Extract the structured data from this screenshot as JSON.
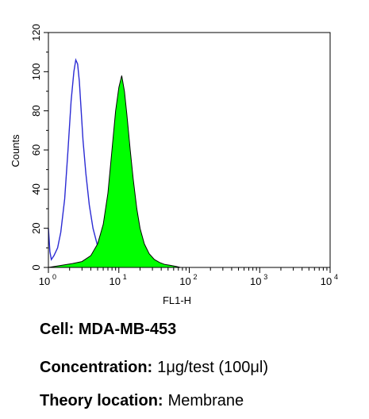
{
  "chart_data": {
    "type": "area",
    "title": "",
    "xlabel": "FL1-H",
    "ylabel": "Counts",
    "x_scale": "log",
    "xlim": [
      1,
      10000
    ],
    "ylim": [
      0,
      120
    ],
    "x_ticks": [
      {
        "value": 1,
        "base": "10",
        "exp": "0"
      },
      {
        "value": 10,
        "base": "10",
        "exp": "1"
      },
      {
        "value": 100,
        "base": "10",
        "exp": "2"
      },
      {
        "value": 1000,
        "base": "10",
        "exp": "3"
      },
      {
        "value": 10000,
        "base": "10",
        "exp": "4"
      }
    ],
    "y_ticks": [
      0,
      20,
      40,
      60,
      80,
      100,
      120
    ],
    "grid": false,
    "series": [
      {
        "style": "outline",
        "color": "#2b2bd4",
        "x": [
          1.0,
          1.05,
          1.1,
          1.2,
          1.35,
          1.5,
          1.7,
          1.9,
          2.1,
          2.3,
          2.45,
          2.6,
          2.75,
          2.9,
          3.1,
          3.4,
          3.8,
          4.3,
          4.9,
          5.6,
          6.3,
          7.0,
          7.8,
          8.5,
          9.0
        ],
        "y": [
          20,
          8,
          4,
          6,
          10,
          18,
          35,
          60,
          85,
          100,
          106,
          104,
          95,
          82,
          65,
          48,
          32,
          20,
          12,
          6,
          3,
          1.5,
          1,
          0.5,
          0
        ]
      },
      {
        "style": "filled",
        "color": "#00ff00",
        "x": [
          1.0,
          1.5,
          2.2,
          3.0,
          4.0,
          5.0,
          6.0,
          7.0,
          8.0,
          9.0,
          10.0,
          11.0,
          12.0,
          13.0,
          14.5,
          16.0,
          18.0,
          20.0,
          23.0,
          27.0,
          32.0,
          38.0,
          45.0,
          55.0,
          65.0,
          75.0
        ],
        "y": [
          0,
          1,
          2,
          3,
          6,
          12,
          22,
          38,
          60,
          80,
          92,
          98,
          90,
          78,
          60,
          45,
          30,
          20,
          12,
          7,
          4,
          2.5,
          1.5,
          1,
          0.5,
          0
        ]
      }
    ]
  },
  "captions": {
    "cell": {
      "key": "Cell: MDA-MB-453",
      "value": ""
    },
    "concentration": {
      "key": "Concentration:",
      "value": "1μg/test (100μl)"
    },
    "theory": {
      "key": "Theory location:",
      "value": "Membrane"
    }
  }
}
